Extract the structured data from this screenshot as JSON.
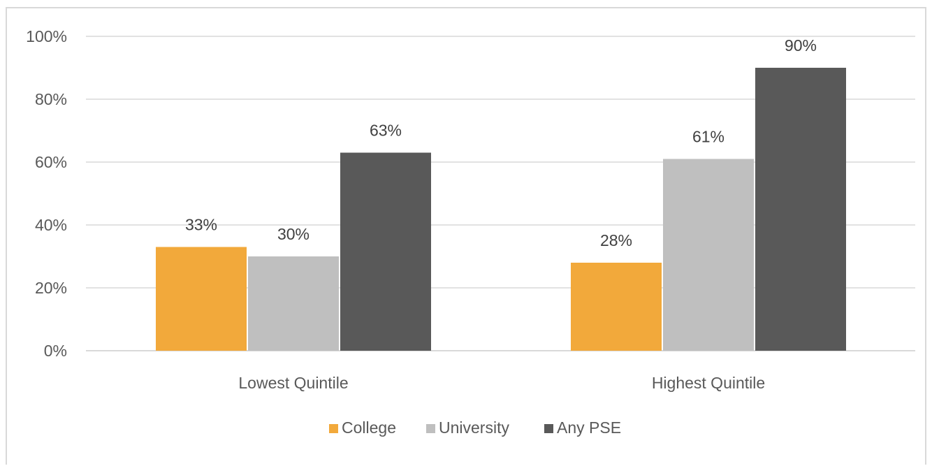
{
  "chart_data": {
    "type": "bar",
    "title": "",
    "xlabel": "",
    "ylabel": "",
    "categories": [
      "Lowest Quintile",
      "Highest Quintile"
    ],
    "series": [
      {
        "name": "College",
        "values": [
          33,
          28
        ],
        "color": "#f2a93b"
      },
      {
        "name": "University",
        "values": [
          30,
          61
        ],
        "color": "#bfbfbf"
      },
      {
        "name": "Any PSE",
        "values": [
          63,
          90
        ],
        "color": "#595959"
      }
    ],
    "data_labels": [
      [
        "33%",
        "28%"
      ],
      [
        "30%",
        "61%"
      ],
      [
        "63%",
        "90%"
      ]
    ],
    "ylim": [
      0,
      100
    ],
    "yticks": [
      "0%",
      "20%",
      "40%",
      "60%",
      "80%",
      "100%"
    ],
    "grid": true,
    "legend_position": "bottom"
  }
}
